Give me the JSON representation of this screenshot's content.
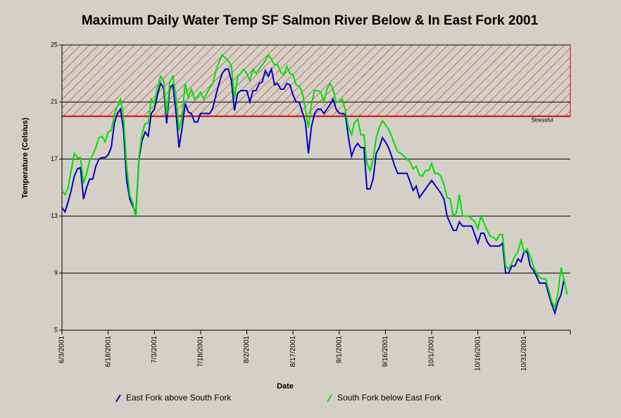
{
  "chart_data": {
    "type": "line",
    "title": "Maximum Daily Water Temp SF Salmon River Below & In East Fork 2001",
    "y_label": "Temperature (Celsius)",
    "x_label": "Date",
    "categories": [
      "6/3/2001",
      null,
      null,
      null,
      null,
      null,
      null,
      null,
      null,
      null,
      null,
      null,
      null,
      null,
      null,
      "6/18/2001",
      null,
      null,
      null,
      null,
      null,
      null,
      null,
      null,
      null,
      null,
      null,
      null,
      null,
      null,
      "7/3/2001",
      null,
      null,
      null,
      null,
      null,
      null,
      null,
      null,
      null,
      null,
      null,
      null,
      null,
      null,
      "7/18/2001",
      null,
      null,
      null,
      null,
      null,
      null,
      null,
      null,
      null,
      null,
      null,
      null,
      null,
      null,
      "8/2/2001",
      null,
      null,
      null,
      null,
      null,
      null,
      null,
      null,
      null,
      null,
      null,
      null,
      null,
      null,
      "8/17/2001",
      null,
      null,
      null,
      null,
      null,
      null,
      null,
      null,
      null,
      null,
      null,
      null,
      null,
      null,
      "9/1/2001",
      null,
      null,
      null,
      null,
      null,
      null,
      null,
      null,
      null,
      null,
      null,
      null,
      null,
      null,
      "9/16/2001",
      null,
      null,
      null,
      null,
      null,
      null,
      null,
      null,
      null,
      null,
      null,
      null,
      null,
      null,
      "10/1/2001",
      null,
      null,
      null,
      null,
      null,
      null,
      null,
      null,
      null,
      null,
      null,
      null,
      null,
      null,
      "10/16/2001",
      null,
      null,
      null,
      null,
      null,
      null,
      null,
      null,
      null,
      null,
      null,
      null,
      null,
      null,
      "10/31/2001",
      null,
      null,
      null,
      null,
      null,
      null,
      null,
      null,
      null,
      null,
      null,
      null,
      null,
      null
    ],
    "series": [
      {
        "name": "East Fork above South Fork",
        "color": "#0000c0",
        "values": [
          13.6,
          13.3,
          14,
          14.8,
          15.8,
          16.3,
          16.4,
          14.2,
          15,
          15.6,
          15.6,
          16.5,
          17,
          17.1,
          17.1,
          17.3,
          17.8,
          19.5,
          20.2,
          20.5,
          19,
          15.5,
          14.2,
          13.7,
          13.2,
          17,
          18.3,
          18.9,
          18.6,
          20.2,
          20.5,
          21.5,
          22.3,
          22,
          19.5,
          22,
          22.2,
          20.3,
          17.8,
          19.2,
          20.9,
          20.3,
          20.2,
          19.6,
          19.6,
          20.2,
          20.2,
          20.2,
          20.2,
          20.6,
          21.5,
          22.3,
          23,
          23.3,
          23.3,
          22.5,
          20.4,
          21.6,
          21.8,
          21.8,
          21.8,
          21,
          21.8,
          21.8,
          22.3,
          22.4,
          23.2,
          22.8,
          23.3,
          22.2,
          22.3,
          21.9,
          21.9,
          22.3,
          22.2,
          21.5,
          21,
          21,
          20.3,
          19.6,
          17.4,
          19.3,
          20.2,
          20.5,
          20.5,
          20.2,
          20.5,
          20.8,
          21.2,
          20.5,
          20.2,
          20.2,
          20.1,
          18.5,
          17.2,
          17.8,
          18.1,
          17.8,
          17.8,
          14.9,
          14.9,
          15.6,
          17.4,
          17.8,
          18.5,
          18.2,
          17.8,
          17.2,
          16.5,
          16,
          16,
          16,
          16,
          15.4,
          14.8,
          15.1,
          14.3,
          14.6,
          14.9,
          15.2,
          15.5,
          15.2,
          14.9,
          14.6,
          14.2,
          13,
          12.5,
          12,
          12,
          12.6,
          12.3,
          12.3,
          12.3,
          12.3,
          11.7,
          11.1,
          11.8,
          11.8,
          11.2,
          10.9,
          10.9,
          10.9,
          10.9,
          11.1,
          9,
          9,
          9.5,
          9.5,
          10,
          9.8,
          10.5,
          10.5,
          9.5,
          9.2,
          8.8,
          8.3,
          8.3,
          8.3,
          7.5,
          6.8,
          6.2,
          7,
          7.5,
          8.6,
          null
        ]
      },
      {
        "name": "South Fork below East Fork",
        "color": "#00e000",
        "values": [
          14.8,
          14.5,
          15,
          16.2,
          17.4,
          17.1,
          17.1,
          15.3,
          16,
          16.9,
          17.3,
          17.8,
          18.5,
          18.6,
          18.2,
          18.9,
          19,
          20.1,
          20.7,
          21.2,
          19.9,
          16.5,
          14.5,
          13.9,
          12.9,
          17.2,
          18.8,
          19.5,
          19.5,
          21.2,
          20.9,
          22,
          22.8,
          22.5,
          20.1,
          22.4,
          22.8,
          21.4,
          19,
          20,
          22.3,
          21.3,
          21.9,
          21.2,
          21.4,
          21.7,
          21.2,
          21.6,
          22,
          22.3,
          23.2,
          23.8,
          24.3,
          24.1,
          23.9,
          23.5,
          21.2,
          22.8,
          23,
          23.3,
          23,
          22.5,
          23.3,
          23,
          23.3,
          23.6,
          23.9,
          24.3,
          24,
          23.6,
          23.6,
          23.1,
          22.9,
          23.5,
          23,
          22.9,
          22.2,
          22.1,
          21.7,
          20.5,
          19.2,
          20.9,
          21.8,
          21.8,
          21.7,
          21,
          21.9,
          22.3,
          21.9,
          21,
          21,
          21.2,
          20.4,
          19.2,
          18.7,
          19.6,
          19.8,
          18.7,
          18.7,
          16.7,
          16.2,
          17,
          18.5,
          19.2,
          19.7,
          19.4,
          19.1,
          18.6,
          18,
          17.5,
          17.4,
          17.2,
          17,
          16.8,
          16.3,
          16.5,
          15.9,
          15.8,
          16.2,
          16.2,
          16.7,
          16,
          16,
          15.8,
          15.2,
          14.3,
          14.2,
          13,
          13.2,
          14.5,
          13,
          13,
          13,
          12.8,
          12.6,
          12.1,
          13,
          12.5,
          12,
          11.6,
          11.5,
          11.3,
          11.7,
          11.7,
          9.5,
          9.3,
          9.7,
          10.2,
          10.5,
          11.3,
          10.5,
          10.7,
          10.2,
          9.5,
          9,
          8.7,
          8.6,
          8.6,
          7.8,
          7,
          6.6,
          7.6,
          9.4,
          8.5,
          7.5
        ]
      }
    ],
    "threshold": {
      "value": 20,
      "label": "Stressful",
      "color": "#d00000"
    },
    "ylim": [
      5,
      25
    ],
    "yticks": [
      5,
      9,
      13,
      17,
      21,
      25
    ],
    "grid": true,
    "legend": "bottom"
  }
}
